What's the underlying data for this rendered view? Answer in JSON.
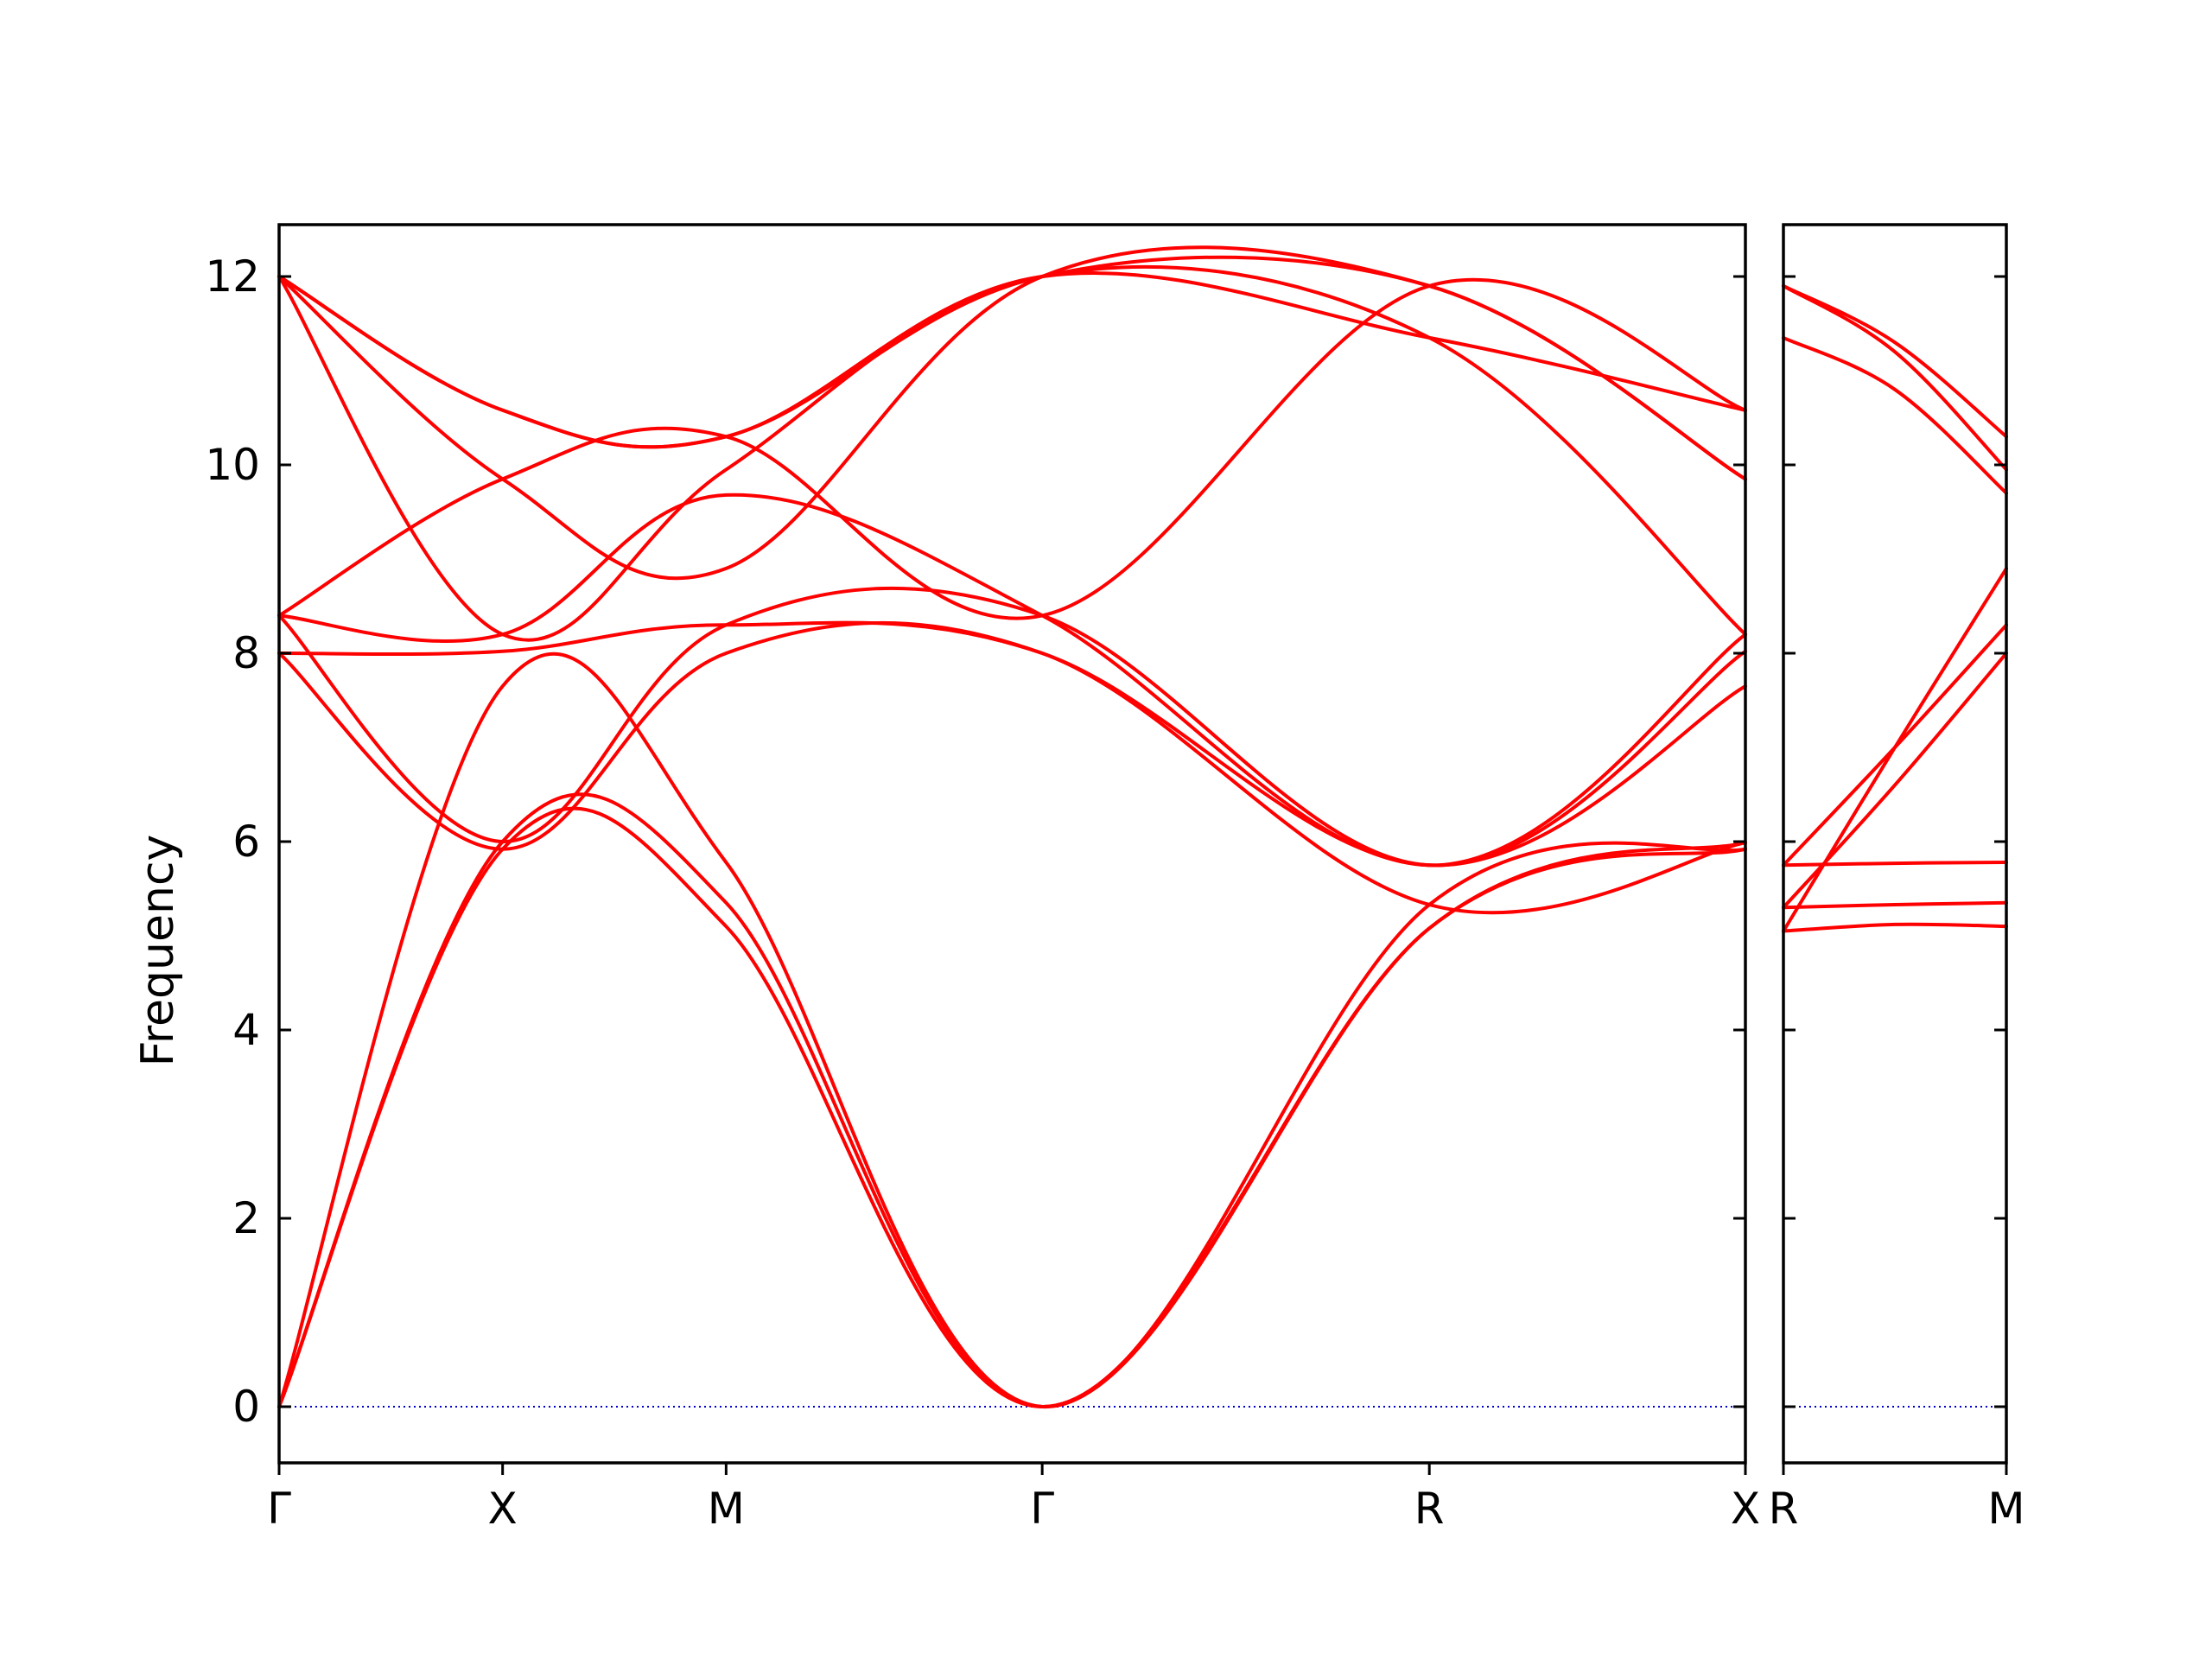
{
  "chart_data": {
    "type": "line",
    "ylabel": "Frequency",
    "ylim": [
      -0.6,
      12.6
    ],
    "y_ticks": [
      0,
      2,
      4,
      6,
      8,
      10,
      12
    ],
    "grid": false,
    "line_color": "#ff0000",
    "zero_line_color": "#0000cc",
    "panels": [
      {
        "labels": [
          "Γ",
          "X",
          "M",
          "Γ",
          "R",
          "X"
        ],
        "x_ticks": [
          0,
          0.5,
          1.0,
          1.7071,
          2.5731,
          3.2802
        ],
        "series": [
          {
            "x": [
              0,
              0.5,
              1.0,
              1.7071,
              2.5731,
              3.2802
            ],
            "values": [
              0,
              5.92,
              5.1,
              0,
              5.08,
              5.92
            ]
          },
          {
            "x": [
              0,
              0.5,
              1.0,
              1.7071,
              2.5731,
              3.2802
            ],
            "values": [
              0,
              6.0,
              5.35,
              0,
              5.08,
              5.99
            ]
          },
          {
            "x": [
              0,
              0.5,
              1.0,
              1.7071,
              2.5731,
              3.2802
            ],
            "values": [
              0,
              7.65,
              5.78,
              0,
              5.33,
              5.92
            ]
          },
          {
            "x": [
              0,
              0.5,
              1.0,
              1.7071,
              2.5731,
              3.2802
            ],
            "values": [
              8.0,
              5.92,
              8.0,
              8.0,
              5.33,
              5.99
            ]
          },
          {
            "x": [
              0,
              0.5,
              1.0,
              1.7071,
              2.5731,
              3.2802
            ],
            "values": [
              8.0,
              8.02,
              8.3,
              8.0,
              5.75,
              7.65
            ]
          },
          {
            "x": [
              0,
              0.5,
              1.0,
              1.7071,
              2.5731,
              3.2802
            ],
            "values": [
              8.4,
              6.0,
              8.3,
              8.4,
              5.75,
              8.02
            ]
          },
          {
            "x": [
              0,
              0.5,
              1.0,
              1.7071,
              2.5731,
              3.2802
            ],
            "values": [
              8.4,
              8.2,
              9.68,
              8.4,
              5.75,
              8.2
            ]
          },
          {
            "x": [
              0,
              0.5,
              1.0,
              1.7071,
              2.5731,
              3.2802
            ],
            "values": [
              12.0,
              8.2,
              9.95,
              12.0,
              11.35,
              8.2
            ]
          },
          {
            "x": [
              0,
              0.5,
              1.0,
              1.7071,
              2.5731,
              3.2802
            ],
            "values": [
              12.0,
              9.85,
              8.9,
              12.0,
              11.9,
              9.85
            ]
          },
          {
            "x": [
              0,
              0.5,
              1.0,
              1.7071,
              2.5731,
              3.2802
            ],
            "values": [
              12.0,
              10.58,
              10.3,
              12.0,
              11.9,
              9.85
            ]
          },
          {
            "x": [
              0,
              0.5,
              1.0,
              1.7071,
              2.5731,
              3.2802
            ],
            "values": [
              8.4,
              9.85,
              10.3,
              8.4,
              11.9,
              10.58
            ]
          },
          {
            "x": [
              0,
              0.5,
              1.0,
              1.7071,
              2.5731,
              3.2802
            ],
            "values": [
              12.0,
              10.58,
              10.3,
              12.0,
              11.35,
              10.58
            ]
          }
        ]
      },
      {
        "labels": [
          "R",
          "M"
        ],
        "x_ticks": [
          0,
          0.5
        ],
        "series": [
          {
            "x": [
              0,
              0.25,
              0.5
            ],
            "values": [
              5.05,
              5.12,
              5.1
            ]
          },
          {
            "x": [
              0,
              0.25,
              0.5
            ],
            "values": [
              5.3,
              5.33,
              5.35
            ]
          },
          {
            "x": [
              0,
              0.25,
              0.5
            ],
            "values": [
              5.3,
              6.6,
              8.0
            ]
          },
          {
            "x": [
              0,
              0.25,
              0.5
            ],
            "values": [
              5.75,
              5.77,
              5.78
            ]
          },
          {
            "x": [
              0,
              0.25,
              0.5
            ],
            "values": [
              5.75,
              7.0,
              8.3
            ]
          },
          {
            "x": [
              0,
              0.25,
              0.5
            ],
            "values": [
              5.05,
              7.0,
              8.9
            ]
          },
          {
            "x": [
              0,
              0.25,
              0.5
            ],
            "values": [
              11.35,
              10.8,
              9.7
            ]
          },
          {
            "x": [
              0,
              0.25,
              0.5
            ],
            "values": [
              11.9,
              11.2,
              9.95
            ]
          },
          {
            "x": [
              0,
              0.25,
              0.5
            ],
            "values": [
              11.9,
              11.3,
              10.3
            ]
          }
        ]
      }
    ]
  }
}
